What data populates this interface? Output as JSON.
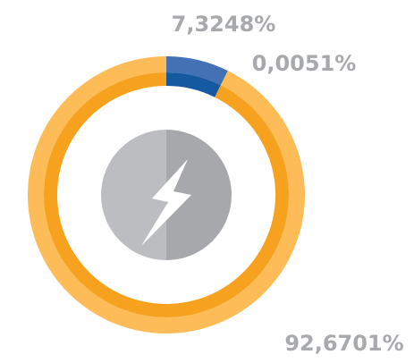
{
  "chart_data": {
    "type": "donut",
    "values": [
      7.3248,
      0.0051,
      92.6701
    ],
    "value_labels": [
      "7,3248%",
      "0,0051%",
      "92,6701%"
    ],
    "colors": [
      "#4272b4",
      "#29a9e1",
      "#fdbc57"
    ],
    "inner_colors": [
      "#155aa0",
      "#1b95d3",
      "#f7a21f"
    ]
  }
}
